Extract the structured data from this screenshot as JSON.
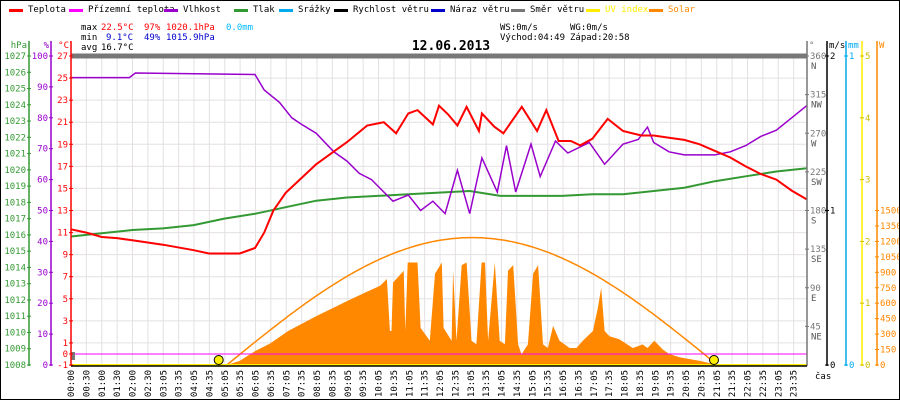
{
  "legend": [
    {
      "label": "Teplota",
      "color": "#ff0000"
    },
    {
      "label": "Přízemní teplota",
      "color": "#ff00ff"
    },
    {
      "label": "Vlhkost",
      "color": "#9900cc"
    },
    {
      "label": "Tlak",
      "color": "#339933"
    },
    {
      "label": "Srážky",
      "color": "#00aaee"
    },
    {
      "label": "Rychlost větru",
      "color": "#000000"
    },
    {
      "label": "Náraz větru",
      "color": "#0000cc"
    },
    {
      "label": "Směr větru",
      "color": "#777777"
    },
    {
      "label": "UV index",
      "color": "#ffee00"
    },
    {
      "label": "Solar",
      "color": "#ff8800"
    }
  ],
  "stats": {
    "max_label": "max",
    "max_temp": "22.5°C",
    "max_hum": "97%",
    "max_press": "1020.1hPa",
    "rain": "0.0mm",
    "min_label": "min",
    "min_temp": "9.1°C",
    "min_hum": "49%",
    "min_press": "1015.9hPa",
    "avg_label": "avg",
    "avg_temp": "16.7°C"
  },
  "wind": {
    "ws": "WS:0m/s",
    "wg": "WG:0m/s",
    "sunrise": "Východ:04:49",
    "sunset": "Západ:20:58"
  },
  "chart_data": {
    "type": "line",
    "title": "12.06.2013",
    "xlabel": "čas",
    "x_range_hours": [
      0,
      24
    ],
    "x_ticks": [
      "00:00",
      "00:30",
      "01:00",
      "01:30",
      "02:00",
      "02:30",
      "03:05",
      "03:35",
      "04:05",
      "04:35",
      "05:05",
      "05:35",
      "06:05",
      "06:35",
      "07:05",
      "07:35",
      "08:05",
      "08:35",
      "09:05",
      "09:35",
      "10:05",
      "10:35",
      "11:05",
      "11:35",
      "12:05",
      "12:35",
      "13:05",
      "13:35",
      "14:05",
      "14:35",
      "15:05",
      "15:35",
      "16:05",
      "16:35",
      "17:05",
      "17:35",
      "18:05",
      "18:35",
      "19:05",
      "19:35",
      "20:05",
      "20:35",
      "21:05",
      "21:35",
      "22:05",
      "22:35",
      "23:05",
      "23:35"
    ],
    "axes": {
      "pressure": {
        "unit": "hPa",
        "range": [
          1008,
          1027
        ],
        "ticks": [
          1027,
          1026,
          1025,
          1024,
          1023,
          1022,
          1021,
          1020,
          1019,
          1018,
          1017,
          1016,
          1015,
          1014,
          1013,
          1012,
          1011,
          1010,
          1009,
          1008
        ]
      },
      "humidity": {
        "unit": "%",
        "range": [
          0,
          100
        ],
        "ticks": [
          100,
          90,
          80,
          70,
          60,
          50,
          40,
          30,
          20,
          10,
          0
        ]
      },
      "temperature": {
        "unit": "°C",
        "range": [
          -1,
          27
        ],
        "ticks": [
          27,
          25,
          23,
          21,
          19,
          17,
          15,
          13,
          11,
          9,
          7,
          5,
          3,
          1,
          0,
          -1
        ]
      },
      "direction": {
        "unit": "°",
        "range": [
          0,
          360
        ],
        "ticks": [
          {
            "v": 360,
            "d": "N"
          },
          {
            "v": 315,
            "d": "NW"
          },
          {
            "v": 270,
            "d": "W"
          },
          {
            "v": 225,
            "d": "SW"
          },
          {
            "v": 180,
            "d": "S"
          },
          {
            "v": 135,
            "d": "SE"
          },
          {
            "v": 90,
            "d": "E"
          },
          {
            "v": 45,
            "d": "NE"
          }
        ]
      },
      "wind": {
        "unit": "m/s",
        "range": [
          0,
          2
        ],
        "ticks": [
          2,
          1,
          0
        ]
      },
      "rain": {
        "unit": "mm",
        "range": [
          0,
          1
        ],
        "ticks": [
          1,
          0
        ]
      },
      "uv": {
        "unit": "",
        "range": [
          0,
          5
        ],
        "ticks": [
          5,
          4,
          3,
          2,
          1,
          0
        ]
      },
      "solar": {
        "unit": "W",
        "range": [
          0,
          3000
        ],
        "ticks": [
          1500,
          1350,
          1200,
          1050,
          900,
          750,
          600,
          450,
          300,
          150,
          0
        ]
      }
    },
    "series": {
      "temperature": [
        [
          0,
          11.3
        ],
        [
          0.5,
          11
        ],
        [
          1,
          10.6
        ],
        [
          1.5,
          10.5
        ],
        [
          2,
          10.3
        ],
        [
          3,
          9.9
        ],
        [
          4,
          9.4
        ],
        [
          4.5,
          9.1
        ],
        [
          5.5,
          9.1
        ],
        [
          6,
          9.6
        ],
        [
          6.3,
          11
        ],
        [
          6.6,
          13
        ],
        [
          7,
          14.6
        ],
        [
          7.5,
          15.9
        ],
        [
          8,
          17.2
        ],
        [
          8.5,
          18.2
        ],
        [
          9,
          19.2
        ],
        [
          9.66,
          20.7
        ],
        [
          10.2,
          21
        ],
        [
          10.6,
          20
        ],
        [
          11,
          21.8
        ],
        [
          11.3,
          22.1
        ],
        [
          11.8,
          20.8
        ],
        [
          12,
          22.5
        ],
        [
          12.3,
          21.7
        ],
        [
          12.6,
          20.7
        ],
        [
          12.9,
          22.4
        ],
        [
          13.3,
          20.2
        ],
        [
          13.4,
          21.8
        ],
        [
          13.8,
          20.6
        ],
        [
          14.1,
          20
        ],
        [
          14.7,
          22.4
        ],
        [
          15.2,
          20.2
        ],
        [
          15.5,
          22.1
        ],
        [
          15.9,
          19.3
        ],
        [
          16.3,
          19.3
        ],
        [
          16.6,
          18.9
        ],
        [
          17,
          19.5
        ],
        [
          17.5,
          21.3
        ],
        [
          18,
          20.2
        ],
        [
          18.6,
          19.8
        ],
        [
          19,
          19.8
        ],
        [
          19.5,
          19.6
        ],
        [
          20,
          19.4
        ],
        [
          20.5,
          19
        ],
        [
          21,
          18.4
        ],
        [
          21.5,
          17.8
        ],
        [
          22,
          17
        ],
        [
          22.5,
          16.3
        ],
        [
          23,
          15.8
        ],
        [
          23.5,
          14.8
        ],
        [
          24,
          14
        ]
      ],
      "ground_temperature": [
        [
          0,
          0
        ],
        [
          24,
          0
        ]
      ],
      "humidity": [
        [
          0,
          93
        ],
        [
          1.9,
          93
        ],
        [
          2.1,
          94.5
        ],
        [
          6,
          94
        ],
        [
          6.3,
          89
        ],
        [
          6.8,
          85
        ],
        [
          7.2,
          80
        ],
        [
          7.5,
          78
        ],
        [
          8,
          75
        ],
        [
          8.57,
          69
        ],
        [
          9,
          66
        ],
        [
          9.4,
          62
        ],
        [
          9.8,
          60
        ],
        [
          10.1,
          57
        ],
        [
          10.5,
          53
        ],
        [
          11,
          55
        ],
        [
          11.4,
          50
        ],
        [
          11.8,
          53
        ],
        [
          12.2,
          49
        ],
        [
          12.6,
          63
        ],
        [
          13,
          49
        ],
        [
          13.4,
          67
        ],
        [
          13.9,
          56
        ],
        [
          14.2,
          71
        ],
        [
          14.5,
          56
        ],
        [
          15,
          71.5
        ],
        [
          15.3,
          61
        ],
        [
          15.8,
          72.5
        ],
        [
          16.2,
          68.6
        ],
        [
          16.9,
          72
        ],
        [
          17.4,
          65
        ],
        [
          18,
          71.5
        ],
        [
          18.5,
          73
        ],
        [
          18.8,
          77
        ],
        [
          19,
          72
        ],
        [
          19.5,
          69
        ],
        [
          20,
          68
        ],
        [
          21,
          68
        ],
        [
          21.5,
          69
        ],
        [
          22,
          71
        ],
        [
          22.5,
          74
        ],
        [
          23,
          76
        ],
        [
          23.5,
          80
        ],
        [
          24,
          84
        ]
      ],
      "pressure": [
        [
          0,
          1015.9
        ],
        [
          1,
          1016.1
        ],
        [
          2,
          1016.3
        ],
        [
          3,
          1016.4
        ],
        [
          4,
          1016.6
        ],
        [
          5,
          1017
        ],
        [
          6,
          1017.3
        ],
        [
          7,
          1017.7
        ],
        [
          8,
          1018.1
        ],
        [
          9,
          1018.3
        ],
        [
          10,
          1018.4
        ],
        [
          11,
          1018.5
        ],
        [
          12,
          1018.6
        ],
        [
          13,
          1018.7
        ],
        [
          14,
          1018.4
        ],
        [
          15,
          1018.4
        ],
        [
          16,
          1018.4
        ],
        [
          17,
          1018.5
        ],
        [
          18,
          1018.5
        ],
        [
          19,
          1018.7
        ],
        [
          20,
          1018.9
        ],
        [
          21,
          1019.3
        ],
        [
          22,
          1019.6
        ],
        [
          23,
          1019.9
        ],
        [
          24,
          1020.1
        ]
      ],
      "wind_direction": [
        [
          0,
          360
        ],
        [
          24,
          360
        ]
      ],
      "uv": [
        [
          0,
          0
        ],
        [
          24,
          0
        ]
      ],
      "solar": [
        [
          5.08,
          0
        ],
        [
          5.5,
          40
        ],
        [
          6,
          135
        ],
        [
          6.5,
          210
        ],
        [
          7.08,
          330
        ],
        [
          8,
          475
        ],
        [
          9,
          620
        ],
        [
          9.5,
          690
        ],
        [
          10.08,
          770
        ],
        [
          10.3,
          835
        ],
        [
          10.4,
          330
        ],
        [
          10.45,
          330
        ],
        [
          10.5,
          800
        ],
        [
          10.85,
          915
        ],
        [
          10.9,
          330
        ],
        [
          10.98,
          995
        ],
        [
          11.3,
          995
        ],
        [
          11.4,
          360
        ],
        [
          11.7,
          235
        ],
        [
          11.87,
          885
        ],
        [
          12.09,
          995
        ],
        [
          12.15,
          360
        ],
        [
          12.41,
          235
        ],
        [
          12.46,
          915
        ],
        [
          12.57,
          235
        ],
        [
          12.74,
          970
        ],
        [
          12.9,
          995
        ],
        [
          13.06,
          235
        ],
        [
          13.22,
          200
        ],
        [
          13.39,
          995
        ],
        [
          13.5,
          995
        ],
        [
          13.6,
          235
        ],
        [
          13.82,
          995
        ],
        [
          13.98,
          235
        ],
        [
          14.15,
          200
        ],
        [
          14.25,
          915
        ],
        [
          14.42,
          970
        ],
        [
          14.58,
          200
        ],
        [
          14.69,
          105
        ],
        [
          14.9,
          200
        ],
        [
          15.07,
          885
        ],
        [
          15.23,
          970
        ],
        [
          15.39,
          200
        ],
        [
          15.55,
          165
        ],
        [
          15.72,
          380
        ],
        [
          15.93,
          235
        ],
        [
          16.26,
          165
        ],
        [
          16.48,
          165
        ],
        [
          16.69,
          235
        ],
        [
          17.02,
          330
        ],
        [
          17.18,
          555
        ],
        [
          17.29,
          750
        ],
        [
          17.4,
          330
        ],
        [
          17.56,
          280
        ],
        [
          17.88,
          250
        ],
        [
          18.32,
          165
        ],
        [
          18.64,
          200
        ],
        [
          18.8,
          165
        ],
        [
          19.02,
          235
        ],
        [
          19.3,
          150
        ],
        [
          19.51,
          107
        ],
        [
          19.84,
          75
        ],
        [
          20.5,
          40
        ],
        [
          21.08,
          0
        ]
      ],
      "solar_clear_sky": {
        "start": 5.08,
        "end": 21.08,
        "peak": 1237
      }
    },
    "sun_markers_hours": [
      4.817,
      20.967
    ]
  }
}
